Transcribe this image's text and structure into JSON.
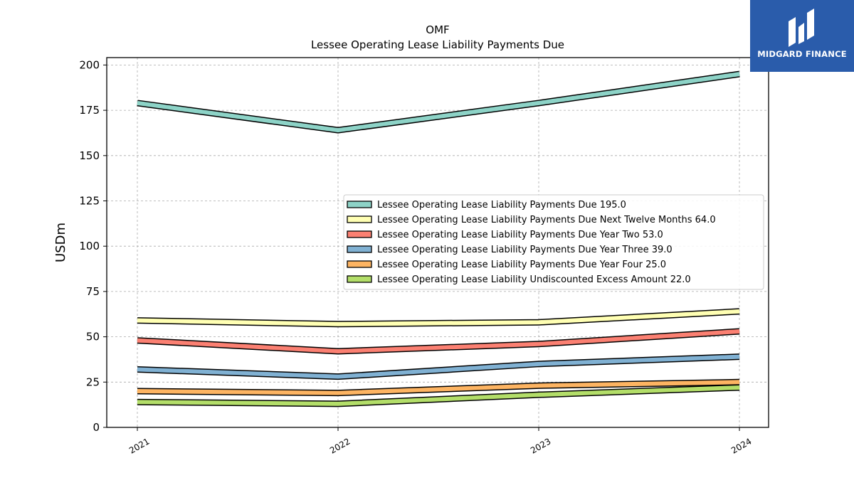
{
  "chart_data": {
    "type": "line",
    "title": "OMF",
    "subtitle": "Lessee Operating Lease Liability Payments Due",
    "ylabel": "USDm",
    "xlabel": "",
    "categories": [
      "2021",
      "2022",
      "2023",
      "2024"
    ],
    "ylim": [
      0,
      205
    ],
    "yticks": [
      0,
      25,
      50,
      75,
      100,
      125,
      150,
      175,
      200
    ],
    "grid": true,
    "legend_position": "center-right",
    "series": [
      {
        "name": "Lessee Operating Lease Liability Payments Due",
        "legend_value": "195.0",
        "values": [
          179,
          164,
          179,
          195
        ],
        "color": "#8dd3c7"
      },
      {
        "name": "Lessee Operating Lease Liability Payments Due Next Twelve Months",
        "legend_value": "64.0",
        "values": [
          59,
          57,
          58,
          64
        ],
        "color": "#ffffb3"
      },
      {
        "name": "Lessee Operating Lease Liability Payments Due Year Two",
        "legend_value": "53.0",
        "values": [
          48,
          42,
          46,
          53
        ],
        "color": "#fb8072"
      },
      {
        "name": "Lessee Operating Lease Liability Payments Due Year Three",
        "legend_value": "39.0",
        "values": [
          32,
          28,
          35,
          39
        ],
        "color": "#80b1d3"
      },
      {
        "name": "Lessee Operating Lease Liability Payments Due Year Four",
        "legend_value": "25.0",
        "values": [
          20,
          19,
          23,
          25
        ],
        "color": "#fdb462"
      },
      {
        "name": "Lessee Operating Lease Liability Undiscounted Excess Amount",
        "legend_value": "22.0",
        "values": [
          14,
          13,
          18,
          22
        ],
        "color": "#b3de69"
      }
    ]
  },
  "logo": {
    "text": "MIDGARD FINANCE"
  }
}
